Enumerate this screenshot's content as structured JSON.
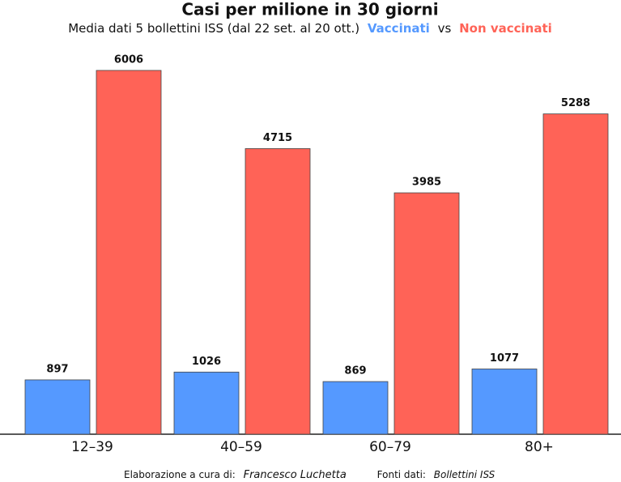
{
  "chart_data": {
    "type": "grouped_bar",
    "title": "Casi per milione in 30 giorni",
    "subtitle": "Media dati 5 bollettini ISS (dal 22 set. al 20 ott.)",
    "subtitle_connector": "vs",
    "categories": [
      "12–39",
      "40–59",
      "60–79",
      "80+"
    ],
    "series": [
      {
        "name": "Vaccinati",
        "color": "#5599ff",
        "values": [
          897,
          1026,
          869,
          1077
        ]
      },
      {
        "name": "Non vaccinati",
        "color": "#ff6357",
        "values": [
          6006,
          4715,
          3985,
          5288
        ]
      }
    ],
    "ylim": [
      0,
      6500
    ],
    "credit_label": "Elaborazione a cura di:",
    "credit": "Francesco Luchetta",
    "source_label": "Fonti dati:",
    "source": "Bollettini ISS"
  }
}
